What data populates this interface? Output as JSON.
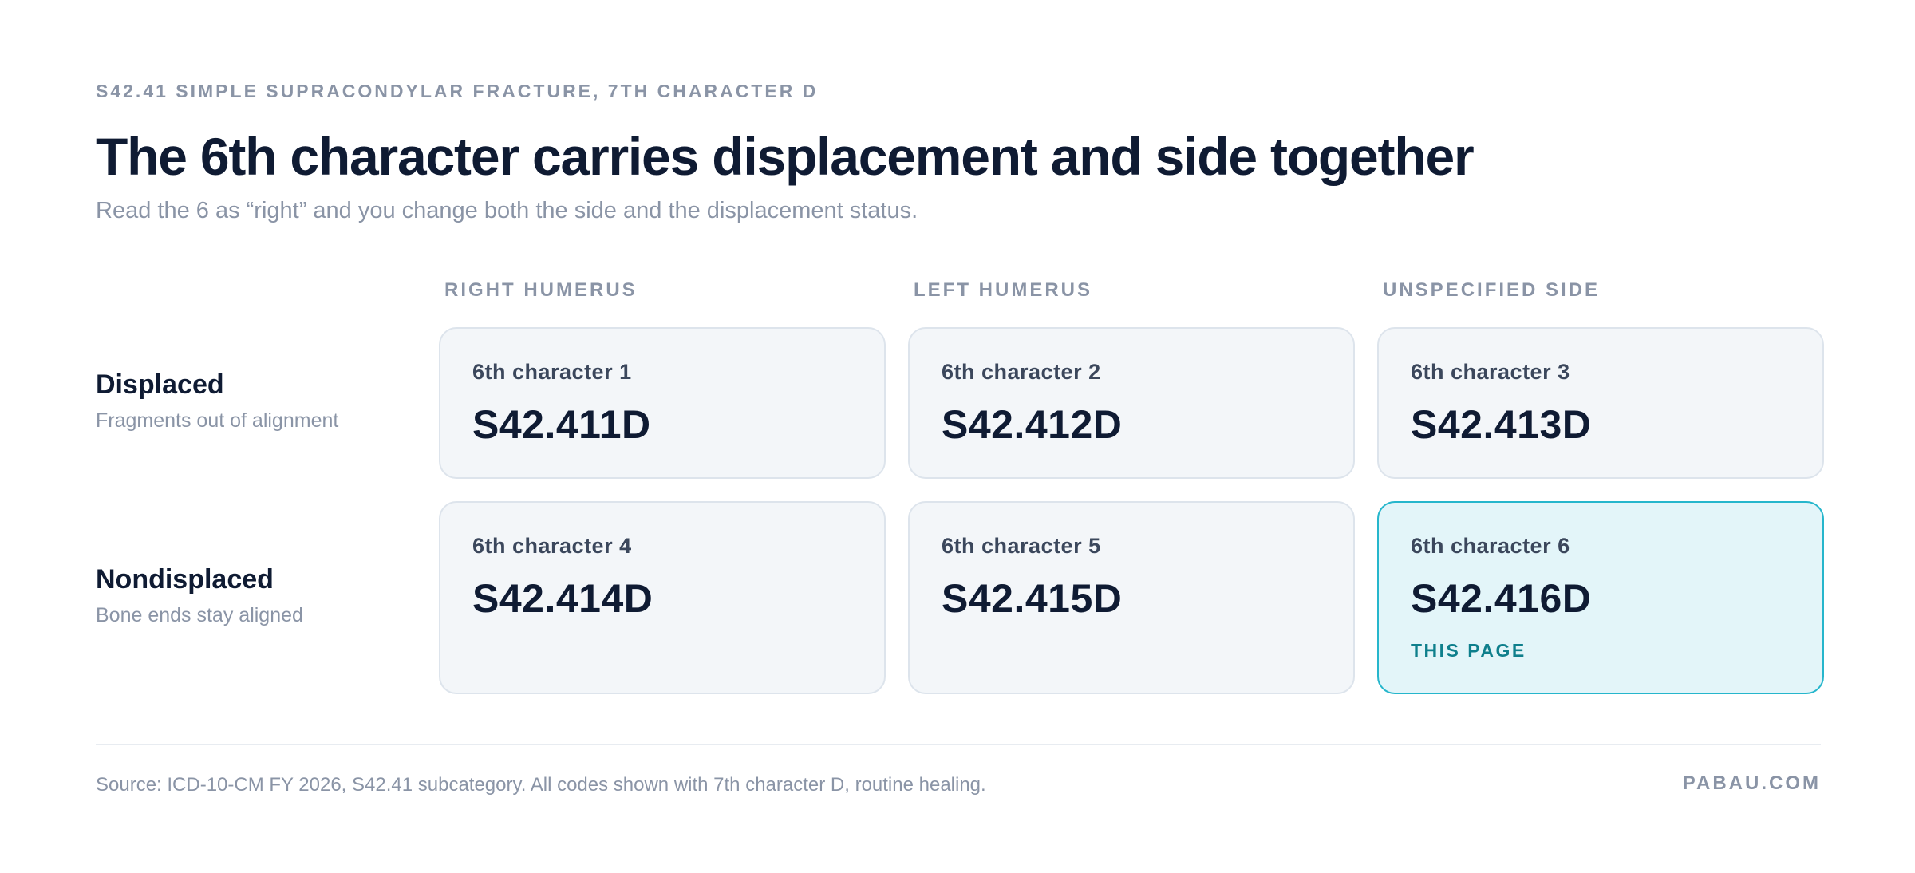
{
  "header": {
    "eyebrow": "S42.41 SIMPLE SUPRACONDYLAR FRACTURE, 7TH CHARACTER D",
    "title": "The 6th character carries displacement and side together",
    "subtitle": "Read the 6 as “right” and you change both the side and the displacement status."
  },
  "columns": [
    "RIGHT HUMERUS",
    "LEFT HUMERUS",
    "UNSPECIFIED SIDE"
  ],
  "rows": [
    {
      "title": "Displaced",
      "desc": "Fragments out of alignment",
      "cards": [
        {
          "label": "6th character 1",
          "code": "S42.411D"
        },
        {
          "label": "6th character 2",
          "code": "S42.412D"
        },
        {
          "label": "6th character 3",
          "code": "S42.413D"
        }
      ]
    },
    {
      "title": "Nondisplaced",
      "desc": "Bone ends stay aligned",
      "cards": [
        {
          "label": "6th character 4",
          "code": "S42.414D"
        },
        {
          "label": "6th character 5",
          "code": "S42.415D"
        },
        {
          "label": "6th character 6",
          "code": "S42.416D",
          "badge": "THIS PAGE"
        }
      ]
    }
  ],
  "footer": {
    "source": "Source: ICD-10-CM FY 2026, S42.41 subcategory. All codes shown with 7th character D, routine healing.",
    "brand": "PABAU.COM"
  },
  "colors": {
    "highlight_border": "#26b6cc",
    "highlight_bg": "#e3f5f9",
    "badge_text": "#0e7f8c"
  }
}
